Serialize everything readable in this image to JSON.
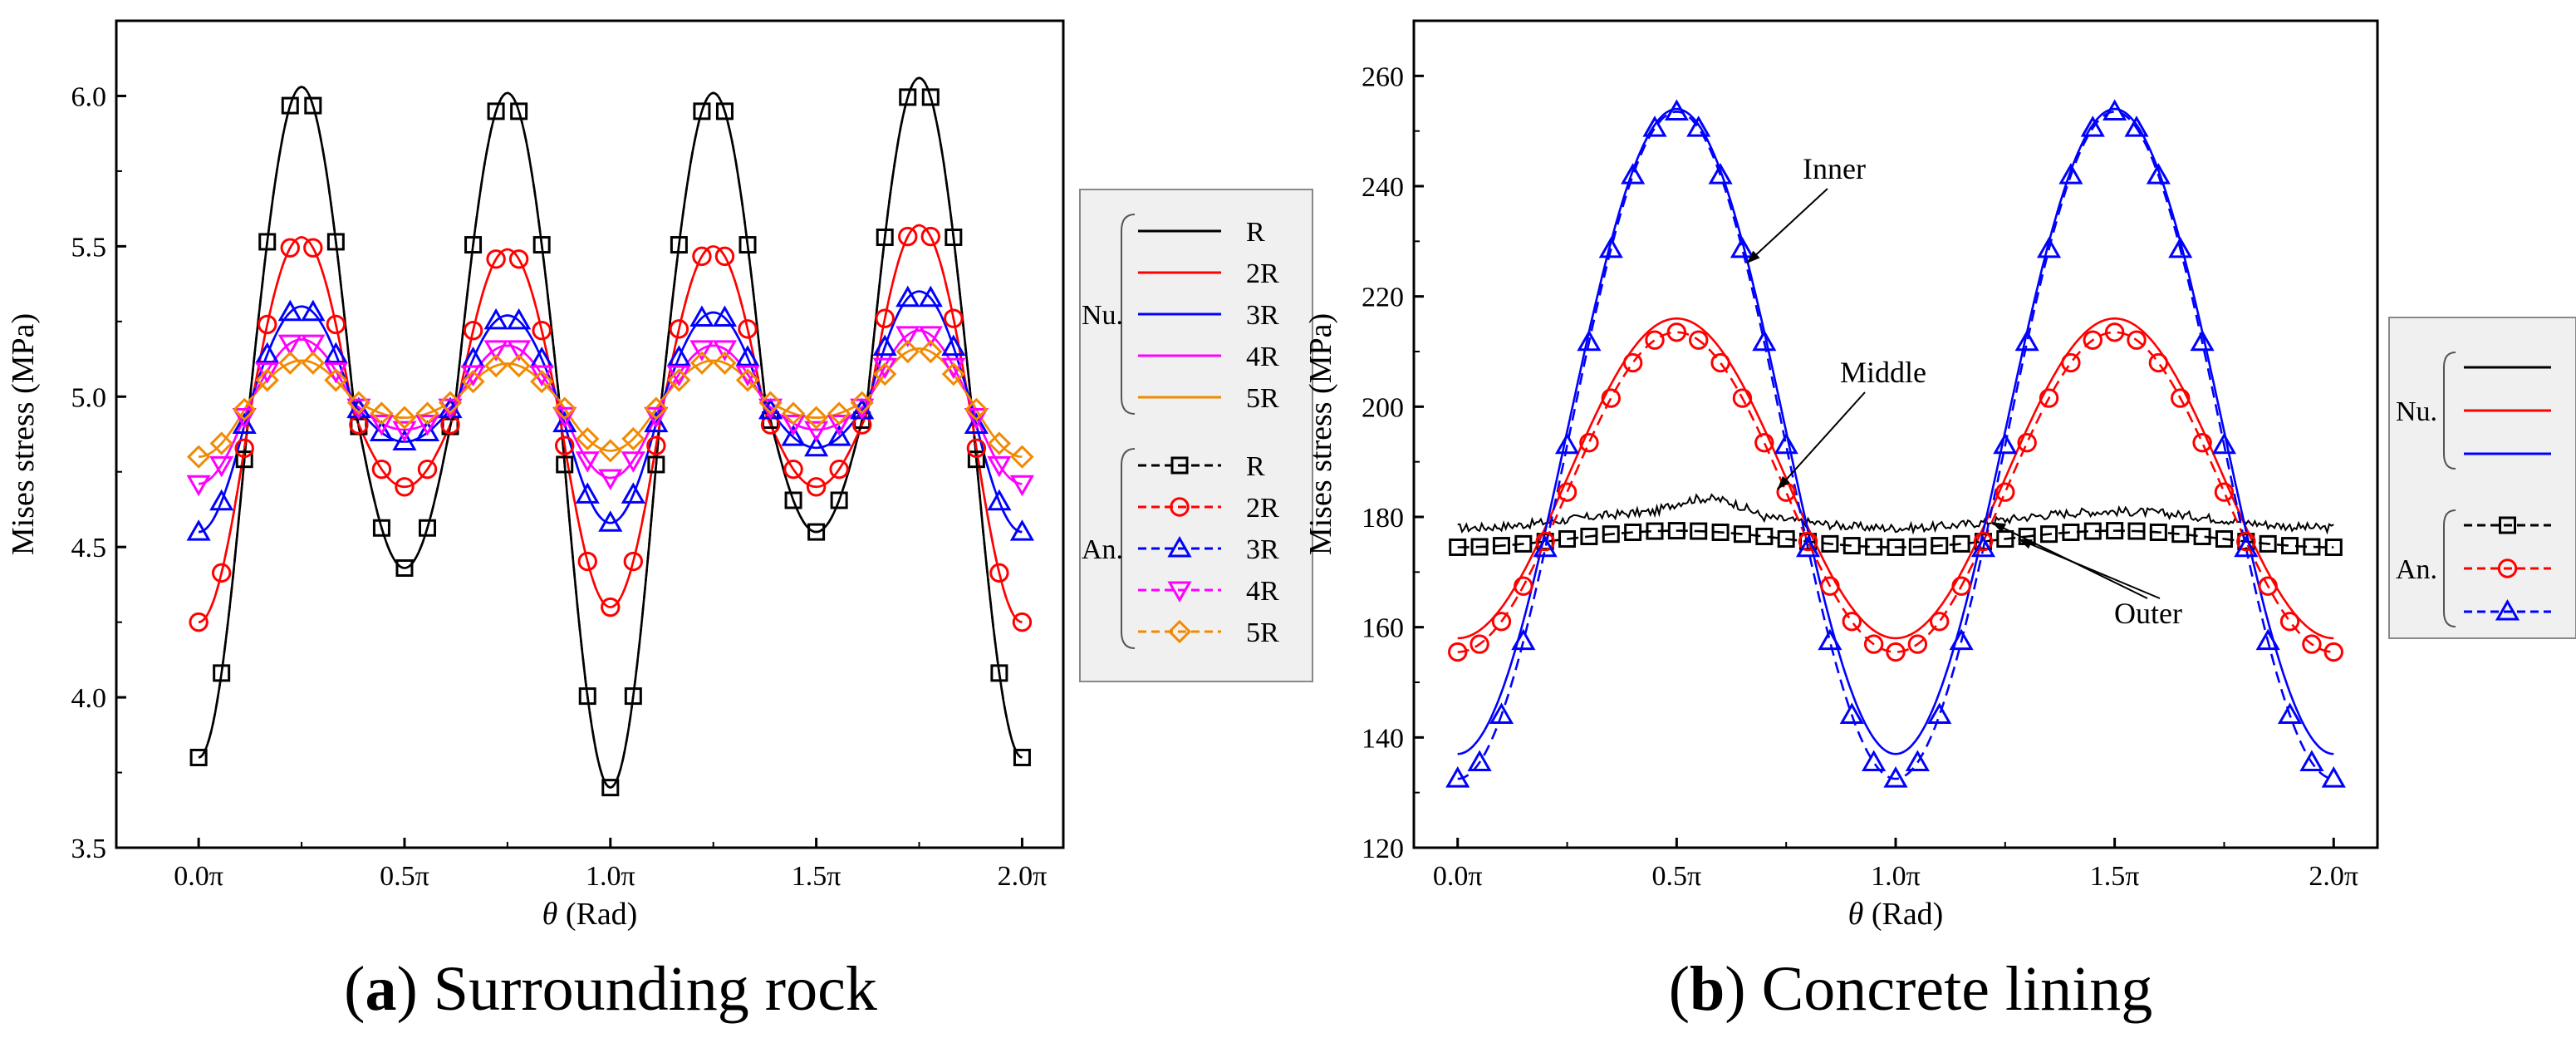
{
  "chart_data": [
    {
      "type": "line",
      "panel": "a",
      "caption_letter": "a",
      "caption_text": "Surrounding rock",
      "xlabel_symbol": "θ",
      "xlabel_unit": "(Rad)",
      "ylabel": "Mises stress (MPa)",
      "xlim": [
        -0.2,
        2.1
      ],
      "ylim": [
        3.5,
        6.25
      ],
      "x_ticks": [
        {
          "value": 0.0,
          "label": "0.0π"
        },
        {
          "value": 0.5,
          "label": "0.5π"
        },
        {
          "value": 1.0,
          "label": "1.0π"
        },
        {
          "value": 1.5,
          "label": "1.5π"
        },
        {
          "value": 2.0,
          "label": "2.0π"
        }
      ],
      "y_ticks": [
        {
          "value": 3.5,
          "label": "3.5"
        },
        {
          "value": 4.0,
          "label": "4.0"
        },
        {
          "value": 4.5,
          "label": "4.5"
        },
        {
          "value": 5.0,
          "label": "5.0"
        },
        {
          "value": 5.5,
          "label": "5.5"
        },
        {
          "value": 6.0,
          "label": "6.0"
        }
      ],
      "x_unit": "π rad",
      "series_model": "mean + amplitude * sin(2*pi*(2*x - 1/2)) with per-peak amplitudes",
      "series": [
        {
          "name": "R",
          "group": "Nu.",
          "color": "#000000",
          "dash": "solid",
          "marker": "none",
          "mean": 5.0,
          "peak_amplitudes": [
            1.03,
            1.01,
            1.01,
            1.06
          ],
          "trough_amplitudes": [
            0.57,
            1.3,
            0.45,
            1.2
          ]
        },
        {
          "name": "2R",
          "group": "Nu.",
          "color": "#ff0000",
          "dash": "solid",
          "marker": "none",
          "mean": 4.95,
          "peak_amplitudes": [
            0.58,
            0.54,
            0.55,
            0.62
          ],
          "trough_amplitudes": [
            0.25,
            0.65,
            0.25,
            0.7
          ]
        },
        {
          "name": "3R",
          "group": "Nu.",
          "color": "#0000ff",
          "dash": "solid",
          "marker": "none",
          "mean": 4.98,
          "peak_amplitudes": [
            0.32,
            0.29,
            0.3,
            0.37
          ],
          "trough_amplitudes": [
            0.13,
            0.4,
            0.15,
            0.43
          ]
        },
        {
          "name": "4R",
          "group": "Nu.",
          "color": "#ff00ff",
          "dash": "solid",
          "marker": "none",
          "mean": 4.98,
          "peak_amplitudes": [
            0.21,
            0.19,
            0.19,
            0.24
          ],
          "trough_amplitudes": [
            0.09,
            0.25,
            0.09,
            0.27
          ]
        },
        {
          "name": "5R",
          "group": "Nu.",
          "color": "#f28a00",
          "dash": "solid",
          "marker": "none",
          "mean": 4.99,
          "peak_amplitudes": [
            0.13,
            0.12,
            0.13,
            0.17
          ],
          "trough_amplitudes": [
            0.06,
            0.17,
            0.06,
            0.19
          ]
        },
        {
          "name": "R",
          "group": "An.",
          "color": "#000000",
          "dash": "dashed",
          "marker": "square",
          "mean": 5.0,
          "peak_amplitudes": [
            1.03,
            1.01,
            1.01,
            1.06
          ],
          "trough_amplitudes": [
            0.57,
            1.3,
            0.45,
            1.2
          ]
        },
        {
          "name": "2R",
          "group": "An.",
          "color": "#ff0000",
          "dash": "dashed",
          "marker": "circle",
          "mean": 4.95,
          "peak_amplitudes": [
            0.58,
            0.54,
            0.55,
            0.62
          ],
          "trough_amplitudes": [
            0.25,
            0.65,
            0.25,
            0.7
          ]
        },
        {
          "name": "3R",
          "group": "An.",
          "color": "#0000ff",
          "dash": "dashed",
          "marker": "triangle-up",
          "mean": 4.98,
          "peak_amplitudes": [
            0.32,
            0.29,
            0.3,
            0.37
          ],
          "trough_amplitudes": [
            0.13,
            0.4,
            0.15,
            0.43
          ]
        },
        {
          "name": "4R",
          "group": "An.",
          "color": "#ff00ff",
          "dash": "dashed",
          "marker": "triangle-down",
          "mean": 4.98,
          "peak_amplitudes": [
            0.21,
            0.19,
            0.19,
            0.24
          ],
          "trough_amplitudes": [
            0.09,
            0.25,
            0.09,
            0.27
          ]
        },
        {
          "name": "5R",
          "group": "An.",
          "color": "#f28a00",
          "dash": "dashed",
          "marker": "diamond",
          "mean": 4.99,
          "peak_amplitudes": [
            0.13,
            0.12,
            0.13,
            0.17
          ],
          "trough_amplitudes": [
            0.06,
            0.17,
            0.06,
            0.19
          ]
        }
      ],
      "legend": {
        "placement": "right",
        "groups": [
          {
            "label": "Nu.",
            "entries": [
              "R",
              "2R",
              "3R",
              "4R",
              "5R"
            ]
          },
          {
            "label": "An.",
            "entries": [
              "R",
              "2R",
              "3R",
              "4R",
              "5R"
            ]
          }
        ]
      }
    },
    {
      "type": "line",
      "panel": "b",
      "caption_letter": "b",
      "caption_text": "Concrete lining",
      "xlabel_symbol": "θ",
      "xlabel_unit": "(Rad)",
      "ylabel": "Mises stress (MPa)",
      "xlim": [
        -0.1,
        2.1
      ],
      "ylim": [
        120,
        270
      ],
      "x_ticks": [
        {
          "value": 0.0,
          "label": "0.0π"
        },
        {
          "value": 0.5,
          "label": "0.5π"
        },
        {
          "value": 1.0,
          "label": "1.0π"
        },
        {
          "value": 1.5,
          "label": "1.5π"
        },
        {
          "value": 2.0,
          "label": "2.0π"
        }
      ],
      "y_ticks": [
        {
          "value": 120,
          "label": "120"
        },
        {
          "value": 140,
          "label": "140"
        },
        {
          "value": 160,
          "label": "160"
        },
        {
          "value": 180,
          "label": "180"
        },
        {
          "value": 200,
          "label": "200"
        },
        {
          "value": 220,
          "label": "220"
        },
        {
          "value": 240,
          "label": "240"
        },
        {
          "value": 260,
          "label": "260"
        }
      ],
      "x_unit": "π rad",
      "series_model": "mean - amplitude * cos(2*pi*x)",
      "series": [
        {
          "name": "Outer",
          "group": "Nu.",
          "color": "#000000",
          "dash": "solid",
          "marker": "none",
          "mean": 179.5,
          "amplitude": 1.5,
          "noise": true
        },
        {
          "name": "Middle",
          "group": "Nu.",
          "color": "#ff0000",
          "dash": "solid",
          "marker": "none",
          "mean": 187,
          "amplitude": 29
        },
        {
          "name": "Inner",
          "group": "Nu.",
          "color": "#0000ff",
          "dash": "solid",
          "marker": "none",
          "mean": 195.5,
          "amplitude": 58.5
        },
        {
          "name": "Outer",
          "group": "An.",
          "color": "#000000",
          "dash": "dashed",
          "marker": "square",
          "mean": 176,
          "amplitude": 1.5
        },
        {
          "name": "Middle",
          "group": "An.",
          "color": "#ff0000",
          "dash": "dashed",
          "marker": "circle",
          "mean": 184.5,
          "amplitude": 29
        },
        {
          "name": "Inner",
          "group": "An.",
          "color": "#0000ff",
          "dash": "dashed",
          "marker": "triangle-up",
          "mean": 193,
          "amplitude": 60.5
        }
      ],
      "annotations": [
        {
          "text": "Inner",
          "target_x": 0.66,
          "target_y": 226
        },
        {
          "text": "Middle",
          "target_x": 0.73,
          "target_y": 185
        },
        {
          "text": "Outer",
          "target_x": [
            1.22,
            1.28
          ],
          "target_y": [
            179,
            176
          ]
        }
      ],
      "legend": {
        "placement": "right",
        "groups": [
          {
            "label": "Nu.",
            "entries": [
              "",
              "",
              ""
            ]
          },
          {
            "label": "An.",
            "entries": [
              "",
              "",
              ""
            ]
          }
        ]
      }
    }
  ]
}
